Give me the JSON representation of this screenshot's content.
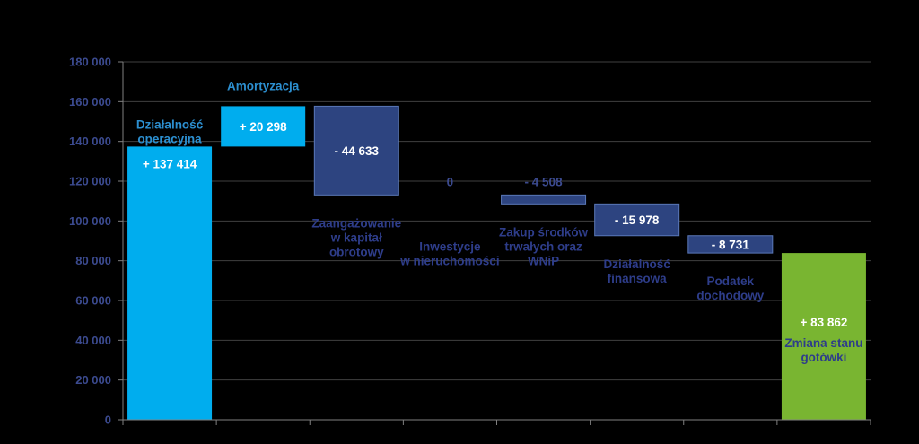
{
  "colors": {
    "background": "#000000",
    "grid": "#404040",
    "axis": "#808080",
    "tick_text": "#3b4a8f",
    "label_text": "#2e3d8a",
    "light_blue": "#00adee",
    "dark_blue": "#2d4480",
    "green": "#79b531"
  },
  "chart_data": {
    "type": "bar",
    "subtype": "waterfall",
    "ylim": [
      0,
      180000
    ],
    "ytick_step": 20000,
    "yticks": [
      "0",
      "20 000",
      "40 000",
      "60 000",
      "80 000",
      "100 000",
      "120 000",
      "140 000",
      "160 000",
      "180 000"
    ],
    "grid": true,
    "legend": "none",
    "steps": [
      {
        "label_lines": [
          "Działalność",
          "operacyjna"
        ],
        "value_label": "+ 137 414",
        "start": 0,
        "end": 137414,
        "color": "#00adee",
        "label_style": "sky",
        "label_pos": "inside-top",
        "value_pos": "inside-top"
      },
      {
        "label_lines": [
          "Amortyzacja"
        ],
        "value_label": "+ 20 298",
        "start": 137414,
        "end": 157712,
        "color": "#00adee",
        "label_style": "sky",
        "label_pos": "above",
        "value_pos": "inside-middle"
      },
      {
        "label_lines": [
          "Zaangażowanie",
          "w kapitał",
          "obrotowy"
        ],
        "value_label": "- 44 633",
        "start": 157712,
        "end": 113079,
        "color": "#2d4480",
        "label_style": "blue",
        "label_pos": "below",
        "value_pos": "inside-middle"
      },
      {
        "label_lines": [
          "Inwestycje",
          "w nieruchomości"
        ],
        "value_label": "0",
        "start": 113079,
        "end": 113079,
        "color": "#2d4480",
        "label_style": "blue",
        "label_pos": "below-low",
        "value_pos": "above"
      },
      {
        "label_lines": [
          "Zakup środków",
          "trwałych oraz",
          "WNiP"
        ],
        "value_label": "- 4 508",
        "start": 113079,
        "end": 108571,
        "color": "#2d4480",
        "label_style": "blue",
        "label_pos": "below",
        "value_pos": "above"
      },
      {
        "label_lines": [
          "Działalność",
          "finansowa"
        ],
        "value_label": "- 15 978",
        "start": 108571,
        "end": 92593,
        "color": "#2d4480",
        "label_style": "blue",
        "label_pos": "below",
        "value_pos": "inside-middle"
      },
      {
        "label_lines": [
          "Podatek",
          "dochodowy"
        ],
        "value_label": "- 8 731",
        "start": 92593,
        "end": 83862,
        "color": "#2d4480",
        "label_style": "blue",
        "label_pos": "below",
        "value_pos": "inside-middle"
      },
      {
        "label_lines": [
          "Zmiana stanu",
          "gotówki"
        ],
        "value_label": "+ 83 862",
        "start": 0,
        "end": 83862,
        "color": "#79b531",
        "label_style": "blue",
        "label_pos": "inside-lower",
        "value_pos": "inside-lower"
      }
    ]
  }
}
